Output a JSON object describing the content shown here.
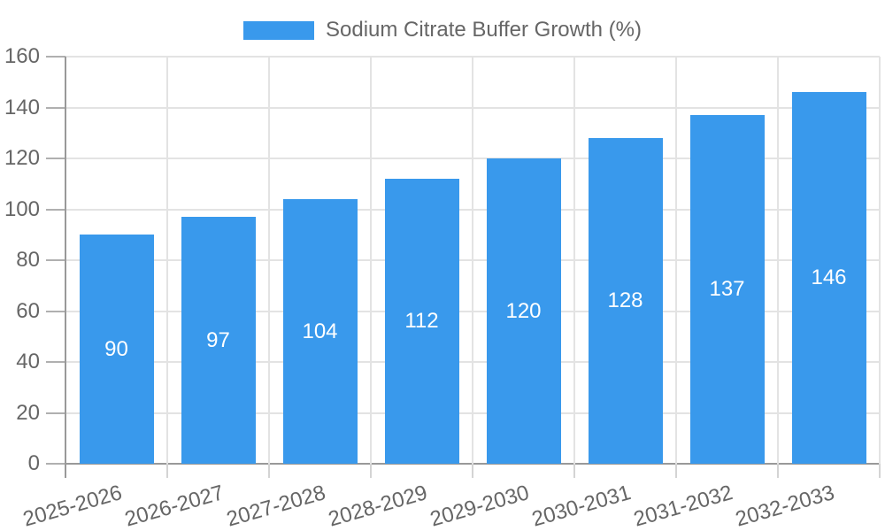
{
  "legend": {
    "label": "Sodium Citrate Buffer Growth (%)"
  },
  "chart_data": {
    "type": "bar",
    "title": "",
    "legend_entries": [
      "Sodium Citrate Buffer Growth (%)"
    ],
    "legend_position": "top-center",
    "categories": [
      "2025-2026",
      "2026-2027",
      "2027-2028",
      "2028-2029",
      "2029-2030",
      "2030-2031",
      "2031-2032",
      "2032-2033"
    ],
    "values": [
      90,
      97,
      104,
      112,
      120,
      128,
      137,
      146
    ],
    "bar_value_labels": [
      "90",
      "97",
      "104",
      "112",
      "120",
      "128",
      "137",
      "146"
    ],
    "xlabel": "",
    "ylabel": "",
    "ylim": [
      0,
      160
    ],
    "y_ticks": [
      0,
      20,
      40,
      60,
      80,
      100,
      120,
      140,
      160
    ],
    "grid": true,
    "x_label_rotation_deg": -16,
    "colors": {
      "bar": "#3999EC",
      "bar_label": "#FFFFFF",
      "axis_text": "#666666",
      "grid_light": "#E3E3E3",
      "axis_line_dark": "#999999",
      "tick_y": "#B0B0B0",
      "tick_x_light": "#D4D4D4",
      "background": "#FFFFFF"
    }
  }
}
